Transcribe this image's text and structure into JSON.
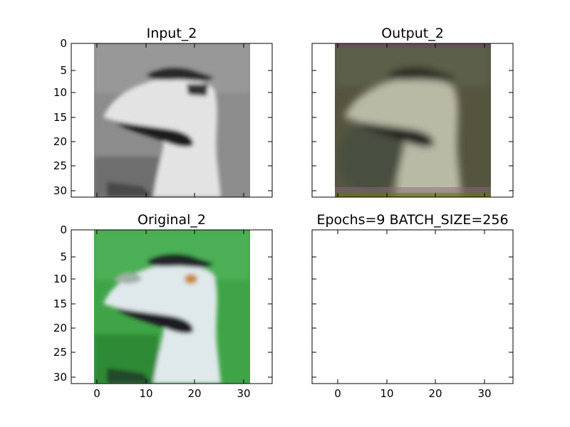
{
  "panels": [
    {
      "id": "input",
      "title": "Input_2",
      "kind": "grayscale-image",
      "x_ticks": [],
      "y_ticks": [
        "0",
        "5",
        "10",
        "15",
        "20",
        "25",
        "30"
      ],
      "show_image": true
    },
    {
      "id": "output",
      "title": "Output_2",
      "kind": "reconstructed-image",
      "x_ticks": [],
      "y_ticks": [],
      "show_image": true
    },
    {
      "id": "original",
      "title": "Original_2",
      "kind": "color-image",
      "x_ticks": [
        "0",
        "10",
        "20",
        "30"
      ],
      "y_ticks": [
        "0",
        "5",
        "10",
        "15",
        "20",
        "25",
        "30"
      ],
      "show_image": true
    },
    {
      "id": "info",
      "title": "Epochs=9 BATCH_SIZE=256",
      "kind": "empty",
      "x_ticks": [
        "0",
        "10",
        "20",
        "30"
      ],
      "y_ticks": [],
      "show_image": false
    }
  ],
  "colors": {
    "background_green": "#3fa447",
    "bird_light": "#dfe8ea",
    "bird_dark": "#20252a",
    "output_tint": "#5a5a45",
    "eye_orange": "#c98a3a"
  }
}
